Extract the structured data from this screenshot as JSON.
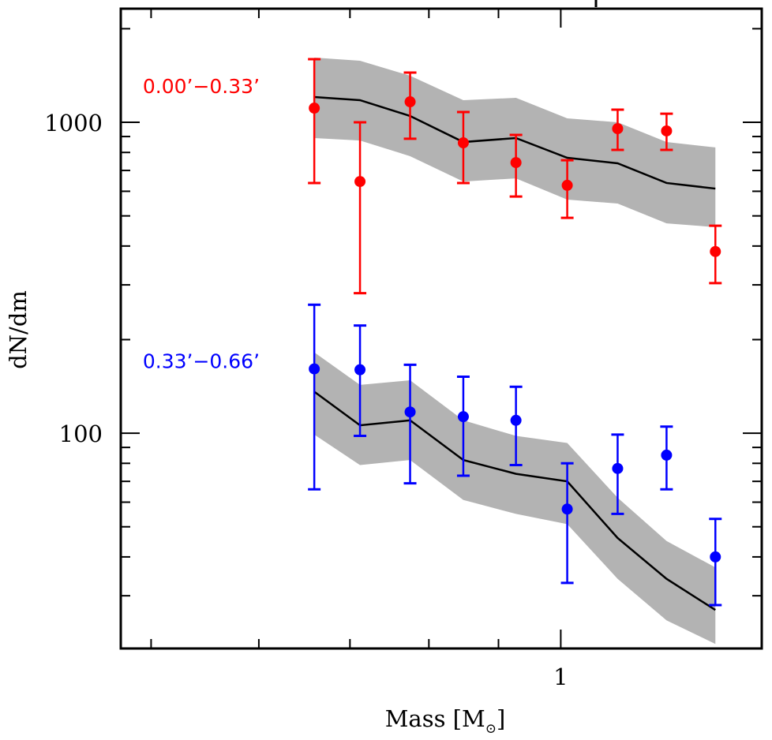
{
  "chart_data": {
    "type": "scatter",
    "title": "",
    "xlabel": "Mass [M⊙]",
    "xlabel_main": "Mass [M",
    "xlabel_sub": "⊙",
    "xlabel_close": "]",
    "ylabel": "dN/dm",
    "xscale": "log",
    "yscale": "log",
    "xlim": [
      0.475,
      1.405
    ],
    "ylim": [
      20.3,
      2320
    ],
    "grid": false,
    "x_tick_labels": [
      {
        "value": 1,
        "label": "1"
      }
    ],
    "x_minor_ticks": [
      0.5,
      0.6,
      0.7,
      0.8,
      0.9,
      1
    ],
    "y_tick_labels": [
      {
        "value": 100,
        "label": "100"
      },
      {
        "value": 1000,
        "label": "1000"
      }
    ],
    "y_major_ticks": [
      100,
      1000
    ],
    "y_minor_ticks": [
      30,
      40,
      50,
      60,
      70,
      80,
      90,
      200,
      300,
      400,
      500,
      600,
      700,
      800,
      900,
      2000
    ],
    "x": [
      0.659,
      0.712,
      0.775,
      0.848,
      0.927,
      1.011,
      1.101,
      1.196,
      1.299
    ],
    "series": [
      {
        "name": "0.00’−0.33’",
        "color": "#ff0000",
        "label_anchor": {
          "x": 0.493,
          "y": 1240
        },
        "values": [
          1111,
          645,
          1164,
          859,
          742,
          627,
          954,
          938,
          384
        ],
        "err_low": [
          638,
          282,
          885,
          638,
          577,
          493,
          815,
          815,
          304
        ],
        "err_high": [
          1596,
          1000,
          1445,
          1079,
          911,
          755,
          1098,
          1066,
          465
        ],
        "model": [
          1206,
          1178,
          1048,
          864,
          890,
          769,
          738,
          638,
          612
        ],
        "model_low": [
          890,
          874,
          778,
          645,
          660,
          564,
          548,
          473,
          460
        ],
        "model_high": [
          1615,
          1578,
          1412,
          1178,
          1199,
          1030,
          1000,
          864,
          830
        ]
      },
      {
        "name": "0.33’−0.66’",
        "color": "#0000ff",
        "label_anchor": {
          "x": 0.493,
          "y": 162
        },
        "values": [
          161,
          160,
          117,
          113,
          110,
          57,
          77,
          85,
          40
        ],
        "err_low": [
          66,
          98,
          69,
          73,
          79,
          33,
          55,
          66,
          28
        ],
        "err_high": [
          259,
          222,
          166,
          152,
          141,
          80,
          99,
          105,
          53
        ],
        "model": [
          136,
          106,
          110,
          82,
          74,
          70,
          46,
          34,
          27
        ],
        "model_low": [
          99,
          79,
          82,
          61,
          55,
          51,
          34,
          25,
          21
        ],
        "model_high": [
          182,
          143,
          148,
          110,
          98,
          93,
          62,
          45,
          37
        ]
      }
    ],
    "model_line_color": "#000000",
    "model_band_color": "#b3b3b3"
  }
}
